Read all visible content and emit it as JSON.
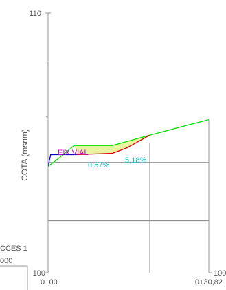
{
  "colors": {
    "axis": "#9a9a9a",
    "grid": "#808080",
    "text": "#555555",
    "terrain": "#00e000",
    "profile_red": "#e00000",
    "profile_blue": "#0000c0",
    "fill": "#e8f5a0",
    "label_magenta": "#c000c0",
    "label_cyan": "#00c8c8"
  },
  "chart_data": {
    "type": "line",
    "title": "",
    "xlabel": "",
    "ylabel": "COTA (msnm)",
    "x_ticks": [
      "0+00",
      "0+30,82"
    ],
    "y_ticks_left": [
      "110",
      "100"
    ],
    "y_tick_right": "100",
    "xlim": [
      0,
      30.82
    ],
    "ylim": [
      100,
      110
    ],
    "annotations": {
      "axis_label": "EIX VIAL",
      "slope_1": "0,67%",
      "slope_2": "5,18%"
    },
    "side_text": [
      "CCES 1",
      "000"
    ],
    "series": [
      {
        "kind": "terrain",
        "color": "#00e000",
        "x": [
          0,
          2,
          5,
          12.3,
          19.5,
          30.82
        ],
        "y": [
          104.1,
          104.4,
          104.9,
          104.9,
          105.3,
          105.9
        ]
      },
      {
        "kind": "axis",
        "color": "#e00000",
        "x": [
          5.5,
          12.3,
          15,
          19.5
        ],
        "y": [
          104.55,
          104.6,
          104.8,
          105.3
        ]
      },
      {
        "kind": "axis",
        "color": "#0000c0",
        "x": [
          0,
          0.5,
          5.5
        ],
        "y": [
          104.1,
          104.55,
          104.55
        ]
      }
    ],
    "grid_y": [
      102,
      104.25
    ],
    "grid_x": [
      19.5
    ]
  }
}
